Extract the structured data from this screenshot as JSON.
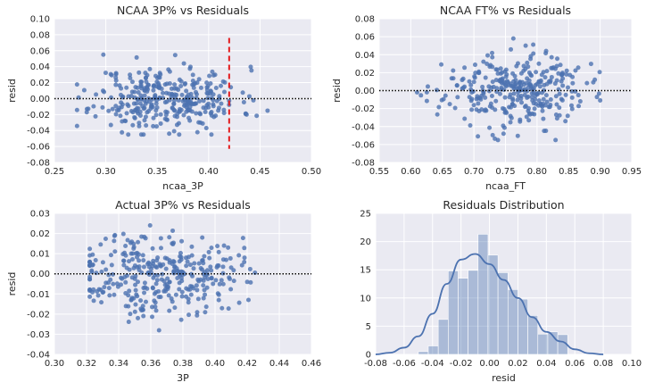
{
  "chart_data": [
    {
      "type": "scatter",
      "title": "NCAA 3P% vs Residuals",
      "xlabel": "ncaa_3P",
      "ylabel": "resid",
      "xlim": [
        0.25,
        0.5
      ],
      "ylim": [
        -0.08,
        0.1
      ],
      "xticks": [
        "0.25",
        "0.30",
        "0.35",
        "0.40",
        "0.45",
        "0.50"
      ],
      "yticks": [
        "-0.08",
        "-0.06",
        "-0.04",
        "-0.02",
        "0.00",
        "0.02",
        "0.04",
        "0.06",
        "0.08",
        "0.10"
      ],
      "reference_line": {
        "axis": "y",
        "value": 0.0,
        "style": "dotted",
        "color": "#000000"
      },
      "vertical_marker": {
        "axis": "x",
        "value": 0.42,
        "style": "dashed",
        "color": "#e41a1c",
        "range": [
          -0.063,
          0.076
        ]
      },
      "points": {
        "count": 340,
        "seed": 11,
        "x_mean": 0.36,
        "x_sd": 0.035,
        "x_range": [
          0.272,
          0.465
        ],
        "y_mean": 0.0,
        "y_sd": 0.02,
        "y_range": [
          -0.045,
          0.055
        ],
        "color": "#4c72b0"
      },
      "grid": true
    },
    {
      "type": "scatter",
      "title": "NCAA FT% vs Residuals",
      "xlabel": "ncaa_FT",
      "ylabel": "resid",
      "xlim": [
        0.55,
        0.95
      ],
      "ylim": [
        -0.08,
        0.08
      ],
      "xticks": [
        "0.55",
        "0.60",
        "0.65",
        "0.70",
        "0.75",
        "0.80",
        "0.85",
        "0.90",
        "0.95"
      ],
      "yticks": [
        "-0.08",
        "-0.06",
        "-0.04",
        "-0.02",
        "0.00",
        "0.02",
        "0.04",
        "0.06",
        "0.08"
      ],
      "reference_line": {
        "axis": "y",
        "value": 0.0,
        "style": "dotted",
        "color": "#000000"
      },
      "points": {
        "count": 330,
        "seed": 23,
        "x_mean": 0.765,
        "x_sd": 0.055,
        "x_range": [
          0.61,
          0.9
        ],
        "y_mean": 0.0,
        "y_sd": 0.02,
        "y_range": [
          -0.055,
          0.058
        ],
        "color": "#4c72b0"
      },
      "grid": true
    },
    {
      "type": "scatter",
      "title": "Actual 3P% vs Residuals",
      "xlabel": "3P",
      "ylabel": "resid",
      "xlim": [
        0.3,
        0.46
      ],
      "ylim": [
        -0.04,
        0.03
      ],
      "xticks": [
        "0.30",
        "0.32",
        "0.34",
        "0.36",
        "0.38",
        "0.40",
        "0.42",
        "0.44",
        "0.46"
      ],
      "yticks": [
        "-0.04",
        "-0.03",
        "-0.02",
        "-0.01",
        "0.00",
        "0.01",
        "0.02",
        "0.03"
      ],
      "reference_line": {
        "axis": "y",
        "value": 0.0,
        "style": "dotted",
        "color": "#000000"
      },
      "points": {
        "count": 340,
        "seed": 37,
        "x_mean": 0.365,
        "x_sd": 0.025,
        "x_range": [
          0.322,
          0.445
        ],
        "y_mean": 0.0,
        "y_sd": 0.01,
        "y_range": [
          -0.029,
          0.024
        ],
        "color": "#4c72b0"
      },
      "grid": true
    },
    {
      "type": "bar",
      "subtype": "histogram_with_kde",
      "title": "Residuals Distribution",
      "xlabel": "resid",
      "ylabel": "",
      "xlim": [
        -0.08,
        0.1
      ],
      "ylim": [
        0,
        25
      ],
      "xticks": [
        "-0.08",
        "-0.06",
        "-0.04",
        "-0.02",
        "0.00",
        "0.02",
        "0.04",
        "0.06",
        "0.08",
        "0.10"
      ],
      "yticks": [
        "0",
        "5",
        "10",
        "15",
        "20",
        "25"
      ],
      "bin_edges": [
        -0.05,
        -0.043,
        -0.036,
        -0.029,
        -0.022,
        -0.015,
        -0.008,
        -0.001,
        0.006,
        0.013,
        0.02,
        0.027,
        0.034,
        0.041,
        0.048,
        0.055
      ],
      "counts": [
        0.5,
        1.5,
        6.2,
        14.8,
        13.5,
        14.9,
        21.3,
        17.6,
        14.5,
        11.5,
        9.8,
        6.9,
        3.6,
        4.0,
        3.5
      ],
      "kde": {
        "x": [
          -0.08,
          -0.07,
          -0.06,
          -0.05,
          -0.04,
          -0.03,
          -0.02,
          -0.01,
          0.0,
          0.01,
          0.02,
          0.03,
          0.04,
          0.05,
          0.06,
          0.07,
          0.08
        ],
        "y": [
          0.0,
          0.3,
          1.2,
          3.2,
          7.2,
          12.5,
          16.8,
          17.8,
          16.0,
          13.2,
          10.0,
          6.6,
          4.0,
          2.3,
          0.9,
          0.2,
          0.0
        ]
      },
      "bar_color": "#4c72b0",
      "kde_color": "#4c72b0",
      "grid": true
    }
  ]
}
